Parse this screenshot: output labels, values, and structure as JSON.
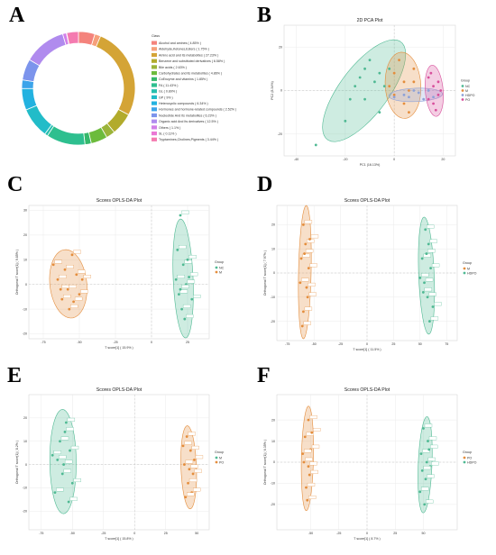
{
  "panels": {
    "A": "A",
    "B": "B",
    "C": "C",
    "D": "D",
    "E": "E",
    "F": "F"
  },
  "chart_data": [
    {
      "id": "A",
      "type": "pie",
      "donut": true,
      "legend_title": "Class",
      "slices": [
        {
          "label": "Alcohol and amines ( 4.85% )",
          "value": 4.85,
          "color": "#f4837c"
        },
        {
          "label": "Aldehyde,Ketones,Esters ( 1.75% )",
          "value": 1.75,
          "color": "#f6a07a"
        },
        {
          "label": "Amino acid and its metabolites ( 27.23% )",
          "value": 27.23,
          "color": "#d4a436"
        },
        {
          "label": "Benzene and substituted derivatives ( 6.58% )",
          "value": 6.58,
          "color": "#b2ab2c"
        },
        {
          "label": "Bile acids ( 2.63% )",
          "value": 2.63,
          "color": "#9bb43a"
        },
        {
          "label": "Carbohydrates and its metabolites ( 4.86% )",
          "value": 4.86,
          "color": "#6cbb3c"
        },
        {
          "label": "CoEnzyme and vitamins ( 1.85% )",
          "value": 1.85,
          "color": "#34b86b"
        },
        {
          "label": "FA ( 11.43% )",
          "value": 11.43,
          "color": "#2ebf8f"
        },
        {
          "label": "GL ( 0.89% )",
          "value": 0.89,
          "color": "#27bfae"
        },
        {
          "label": "GP ( 9% )",
          "value": 9.0,
          "color": "#22bcc8"
        },
        {
          "label": "Heterocyclic compounds ( 6.34% )",
          "value": 6.34,
          "color": "#23b2e0"
        },
        {
          "label": "Hormones and hormone-related compounds ( 2.52% )",
          "value": 2.52,
          "color": "#3ca4ea"
        },
        {
          "label": "Nucleotide And Its metabolites ( 6.23% )",
          "value": 6.23,
          "color": "#7c94ec"
        },
        {
          "label": "Organic acid And Its derivatives ( 12.5% )",
          "value": 12.5,
          "color": "#b08bee"
        },
        {
          "label": "Others ( 1.1% )",
          "value": 1.1,
          "color": "#d27fe8"
        },
        {
          "label": "SL ( 0.11% )",
          "value": 0.11,
          "color": "#ea78d4"
        },
        {
          "label": "Tryptamines,Cholines,Pigments ( 3.44% )",
          "value": 3.44,
          "color": "#f47bb0"
        }
      ]
    },
    {
      "id": "B",
      "type": "scatter",
      "title": "2D PCA Plot",
      "xlabel": "PC1 (16.13%)",
      "ylabel": "PC2 (8.34%)",
      "xlim": [
        -45,
        25
      ],
      "ylim": [
        -30,
        30
      ],
      "xticks": [
        -40,
        -20,
        0,
        20
      ],
      "yticks": [
        -20,
        0,
        20
      ],
      "legend_title": "Group",
      "series": [
        {
          "name": "NC",
          "color": "#4fb993",
          "points": [
            [
              -14,
              6
            ],
            [
              -12,
              10
            ],
            [
              -10,
              14
            ],
            [
              -8,
              4
            ],
            [
              -6,
              8
            ],
            [
              -4,
              2
            ],
            [
              -16,
              2
            ],
            [
              -12,
              -4
            ],
            [
              -6,
              -10
            ],
            [
              -18,
              -4
            ],
            [
              -2,
              10
            ],
            [
              -20,
              -14
            ],
            [
              -32,
              -25
            ]
          ]
        },
        {
          "name": "M",
          "color": "#e48d3c",
          "points": [
            [
              0,
              8
            ],
            [
              2,
              14
            ],
            [
              4,
              4
            ],
            [
              6,
              0
            ],
            [
              8,
              10
            ],
            [
              4,
              -6
            ],
            [
              0,
              -2
            ],
            [
              -2,
              2
            ],
            [
              6,
              -10
            ],
            [
              8,
              4
            ]
          ]
        },
        {
          "name": "HDPO",
          "color": "#8da1d8",
          "points": [
            [
              0,
              -3
            ],
            [
              6,
              -3
            ],
            [
              10,
              -1
            ],
            [
              12,
              -4
            ],
            [
              14,
              0
            ],
            [
              8,
              0
            ],
            [
              16,
              -3
            ],
            [
              4,
              -2
            ]
          ]
        },
        {
          "name": "PO",
          "color": "#d84f9c",
          "points": [
            [
              14,
              6
            ],
            [
              16,
              2
            ],
            [
              18,
              -2
            ],
            [
              16,
              -6
            ],
            [
              18,
              4
            ],
            [
              14,
              -4
            ],
            [
              17,
              -9
            ],
            [
              15,
              8
            ],
            [
              19,
              0
            ]
          ]
        }
      ]
    },
    {
      "id": "C",
      "type": "scatter",
      "title": "Scores OPLS-DA Plot",
      "xlabel": "T score[1] ( 15.9% )",
      "ylabel": "Orthogonal T score[1] ( 9.85% )",
      "xlim": [
        -85,
        40
      ],
      "ylim": [
        -22,
        32
      ],
      "xticks": [
        -75,
        -50,
        -25,
        0,
        25
      ],
      "yticks": [
        -20,
        -10,
        0,
        10,
        20,
        30
      ],
      "legend_title": "Group",
      "series": [
        {
          "name": "NC",
          "color": "#4fb993",
          "points": [
            [
              20,
              28
            ],
            [
              18,
              14
            ],
            [
              22,
              8
            ],
            [
              24,
              0
            ],
            [
              19,
              -4
            ],
            [
              26,
              3
            ],
            [
              21,
              -10
            ],
            [
              28,
              -6
            ],
            [
              17,
              2
            ],
            [
              23,
              -14
            ],
            [
              25,
              10
            ],
            [
              20,
              -2
            ]
          ]
        },
        {
          "name": "M",
          "color": "#e48d3c",
          "points": [
            [
              -55,
              12
            ],
            [
              -60,
              6
            ],
            [
              -65,
              2
            ],
            [
              -58,
              -2
            ],
            [
              -52,
              4
            ],
            [
              -62,
              -6
            ],
            [
              -50,
              -4
            ],
            [
              -68,
              8
            ],
            [
              -57,
              -10
            ],
            [
              -48,
              2
            ],
            [
              -63,
              -2
            ],
            [
              -54,
              -7
            ]
          ]
        }
      ]
    },
    {
      "id": "D",
      "type": "scatter",
      "title": "Scores OPLS-DA Plot",
      "xlabel": "T score[1] ( 11.5% )",
      "ylabel": "Orthogonal T score[1] ( 7.97% )",
      "xlim": [
        -85,
        85
      ],
      "ylim": [
        -28,
        28
      ],
      "xticks": [
        -75,
        -50,
        -25,
        0,
        25,
        50,
        75
      ],
      "yticks": [
        -20,
        -10,
        0,
        10,
        20
      ],
      "legend_title": "Group",
      "series": [
        {
          "name": "M",
          "color": "#e48d3c",
          "points": [
            [
              -60,
              20
            ],
            [
              -58,
              12
            ],
            [
              -62,
              6
            ],
            [
              -55,
              2
            ],
            [
              -63,
              -4
            ],
            [
              -56,
              -10
            ],
            [
              -60,
              -16
            ],
            [
              -54,
              14
            ],
            [
              -61,
              -22
            ],
            [
              -57,
              -6
            ],
            [
              -59,
              8
            ]
          ]
        },
        {
          "name": "HDPO",
          "color": "#4fb993",
          "points": [
            [
              55,
              18
            ],
            [
              58,
              12
            ],
            [
              52,
              6
            ],
            [
              60,
              2
            ],
            [
              54,
              -4
            ],
            [
              57,
              -10
            ],
            [
              50,
              -2
            ],
            [
              62,
              -14
            ],
            [
              56,
              8
            ],
            [
              59,
              -20
            ],
            [
              53,
              -8
            ]
          ]
        }
      ]
    },
    {
      "id": "E",
      "type": "scatter",
      "title": "Scores OPLS-DA Plot",
      "xlabel": "T score[1] ( 15.8% )",
      "ylabel": "Orthogonal T score[1] ( 8.2% )",
      "xlim": [
        -85,
        60
      ],
      "ylim": [
        -28,
        30
      ],
      "xticks": [
        -75,
        -50,
        -25,
        0,
        25,
        50
      ],
      "yticks": [
        -20,
        -10,
        0,
        10,
        20
      ],
      "legend_title": "Group",
      "series": [
        {
          "name": "M",
          "color": "#4fb993",
          "points": [
            [
              -55,
              18
            ],
            [
              -60,
              10
            ],
            [
              -52,
              6
            ],
            [
              -62,
              2
            ],
            [
              -58,
              -4
            ],
            [
              -50,
              -8
            ],
            [
              -64,
              -12
            ],
            [
              -56,
              14
            ],
            [
              -53,
              -16
            ],
            [
              -66,
              4
            ],
            [
              -57,
              0
            ]
          ]
        },
        {
          "name": "PO",
          "color": "#e48d3c",
          "points": [
            [
              42,
              12
            ],
            [
              45,
              6
            ],
            [
              40,
              0
            ],
            [
              47,
              -4
            ],
            [
              43,
              -8
            ],
            [
              48,
              2
            ],
            [
              39,
              8
            ],
            [
              46,
              -12
            ],
            [
              44,
              -2
            ],
            [
              41,
              -14
            ]
          ]
        }
      ]
    },
    {
      "id": "F",
      "type": "scatter",
      "title": "Scores OPLS-DA Plot",
      "xlabel": "T score[1] ( 8.7% )",
      "ylabel": "Orthogonal T score[1] ( 6.35% )",
      "xlim": [
        -80,
        80
      ],
      "ylim": [
        -32,
        32
      ],
      "xticks": [
        -50,
        -25,
        0,
        25,
        50
      ],
      "yticks": [
        -20,
        -10,
        0,
        10,
        20
      ],
      "legend_title": "Group",
      "series": [
        {
          "name": "PO",
          "color": "#e48d3c",
          "points": [
            [
              -52,
              20
            ],
            [
              -55,
              12
            ],
            [
              -50,
              6
            ],
            [
              -56,
              0
            ],
            [
              -51,
              -6
            ],
            [
              -54,
              -12
            ],
            [
              -49,
              14
            ],
            [
              -53,
              -18
            ],
            [
              -57,
              4
            ],
            [
              -52,
              -2
            ]
          ]
        },
        {
          "name": "HDPO",
          "color": "#4fb993",
          "points": [
            [
              50,
              16
            ],
            [
              54,
              10
            ],
            [
              48,
              4
            ],
            [
              56,
              -2
            ],
            [
              52,
              -8
            ],
            [
              47,
              -14
            ],
            [
              55,
              6
            ],
            [
              51,
              -20
            ],
            [
              53,
              0
            ],
            [
              49,
              -4
            ]
          ]
        }
      ]
    }
  ]
}
